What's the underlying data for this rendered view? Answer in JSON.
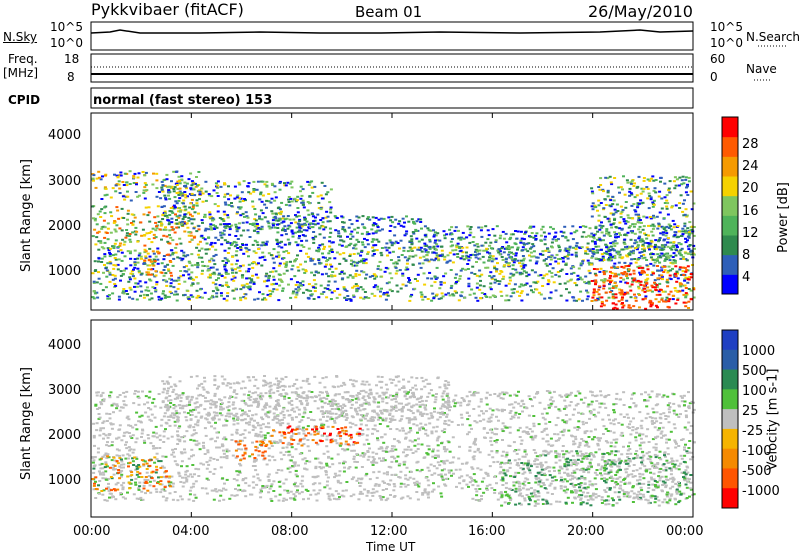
{
  "header": {
    "station": "Pykkvibaer (fitACF)",
    "beam": "Beam 01",
    "date": "26/May/2010"
  },
  "noise_panel": {
    "left_label": "N.Sky",
    "right_label": "N.Search",
    "left_ticks": [
      "10^5",
      "10^0"
    ],
    "right_ticks": [
      "10^5",
      "10^0"
    ]
  },
  "freq_panel": {
    "left_label_1": "Freq.",
    "left_label_2": "[MHz]",
    "right_label": "Nave",
    "left_ticks": [
      "18",
      "8"
    ],
    "right_ticks": [
      "60",
      "0"
    ]
  },
  "cpid": {
    "label": "CPID",
    "text": "normal (fast stereo) 153"
  },
  "colors": {
    "power": [
      "#0000ff",
      "#2e5fb8",
      "#2f8a4e",
      "#4fb35a",
      "#7fc65f",
      "#f5d200",
      "#f59a00",
      "#ff5a00",
      "#ff0000"
    ],
    "velocity": [
      "#1f3fc2",
      "#2a5ea7",
      "#2a8a52",
      "#50c03a",
      "#bfbfbf",
      "#f5b400",
      "#f58a00",
      "#ff5500",
      "#ff0000"
    ]
  },
  "chart_data": [
    {
      "type": "heatmap",
      "name": "power",
      "ylabel": "Slant Range [km]",
      "yticks": [
        "4000",
        "3000",
        "2000",
        "1000"
      ],
      "ylim": [
        180,
        4500
      ],
      "colorbar_label": "Power [dB]",
      "colorbar_ticks": [
        "28",
        "24",
        "20",
        "16",
        "12",
        "8",
        "4"
      ],
      "colorbar_range": [
        0,
        30
      ]
    },
    {
      "type": "heatmap",
      "name": "velocity",
      "ylabel": "Slant Range [km]",
      "yticks": [
        "4000",
        "3000",
        "2000",
        "1000"
      ],
      "ylim": [
        180,
        4500
      ],
      "colorbar_label": "Velocity [m s-1]",
      "colorbar_ticks": [
        "1000",
        "500",
        "100",
        "25",
        "-25",
        "-100",
        "-500",
        "-1000"
      ]
    }
  ],
  "xaxis": {
    "label": "Time UT",
    "ticks": [
      "00:00",
      "04:00",
      "08:00",
      "12:00",
      "16:00",
      "20:00",
      "00:00"
    ]
  }
}
